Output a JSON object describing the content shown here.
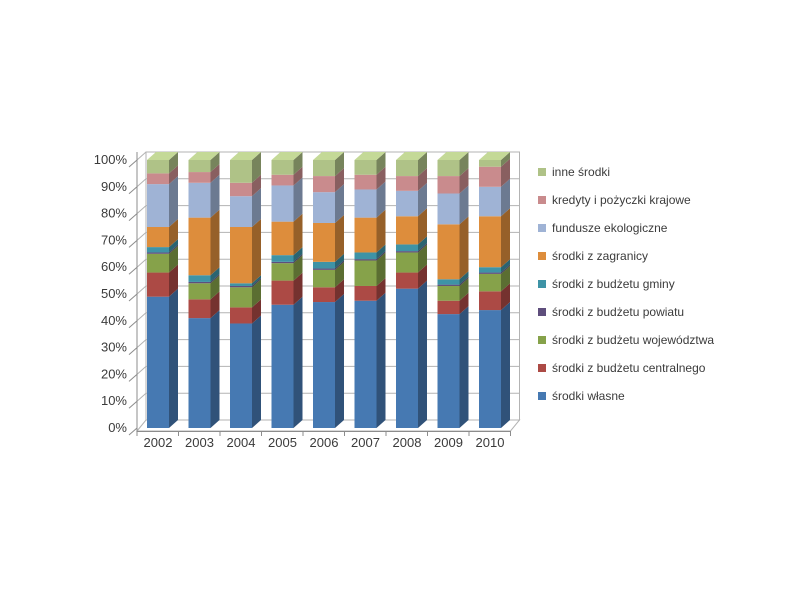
{
  "chart_data": {
    "type": "bar",
    "stacked": true,
    "percent_stacked": true,
    "variant": "3d-column",
    "title": "",
    "xlabel": "",
    "ylabel": "",
    "ylim": [
      0,
      100
    ],
    "grid": true,
    "legend_position": "right",
    "categories": [
      "2002",
      "2003",
      "2004",
      "2005",
      "2006",
      "2007",
      "2008",
      "2009",
      "2010"
    ],
    "y_ticks": [
      "0%",
      "10%",
      "20%",
      "30%",
      "40%",
      "50%",
      "60%",
      "70%",
      "80%",
      "90%",
      "100%"
    ],
    "series": [
      {
        "name": "środki własne",
        "color": "#4679B2",
        "values": [
          49,
          41,
          39,
          46,
          47,
          47.5,
          52,
          42.5,
          44
        ]
      },
      {
        "name": "środki z budżetu centralnego",
        "color": "#AC4A45",
        "values": [
          9,
          7,
          6,
          9,
          5.5,
          5.5,
          6,
          5,
          7
        ]
      },
      {
        "name": "środki z budżetu województwa",
        "color": "#86A24A",
        "values": [
          7,
          6,
          7.5,
          6.5,
          6.5,
          9.5,
          7.5,
          5.5,
          6.5
        ]
      },
      {
        "name": "środki z budżetu powiatu",
        "color": "#5E4E7C",
        "values": [
          0.5,
          0.5,
          0.5,
          0.5,
          0.5,
          0.5,
          0.5,
          0.5,
          0.5
        ]
      },
      {
        "name": "środki z budżetu gminy",
        "color": "#3E93A6",
        "values": [
          2,
          2.5,
          1,
          2.5,
          2.5,
          2.5,
          2.5,
          2,
          2
        ]
      },
      {
        "name": "środki z zagranicy",
        "color": "#DD8D3C",
        "values": [
          7.5,
          21.5,
          21,
          12.5,
          14.5,
          13,
          10.5,
          20.5,
          19
        ]
      },
      {
        "name": "fundusze ekologiczne",
        "color": "#9FB3D5",
        "values": [
          16,
          13,
          11.5,
          13.5,
          11.5,
          10.5,
          9.5,
          11.5,
          11
        ]
      },
      {
        "name": "kredyty i pożyczki krajowe",
        "color": "#C98B8D",
        "values": [
          4,
          4,
          5,
          4,
          6,
          5.5,
          5.5,
          6.5,
          7.5
        ]
      },
      {
        "name": "inne środki",
        "color": "#AFC287",
        "values": [
          5,
          4.5,
          8.5,
          5.5,
          6,
          5.5,
          6,
          6,
          2.5
        ]
      }
    ],
    "colors": {
      "gridline": "#b3b3b3",
      "axis_line": "#8c8c8c",
      "axis_text": "#3b3b3b",
      "background": "#ffffff"
    }
  }
}
